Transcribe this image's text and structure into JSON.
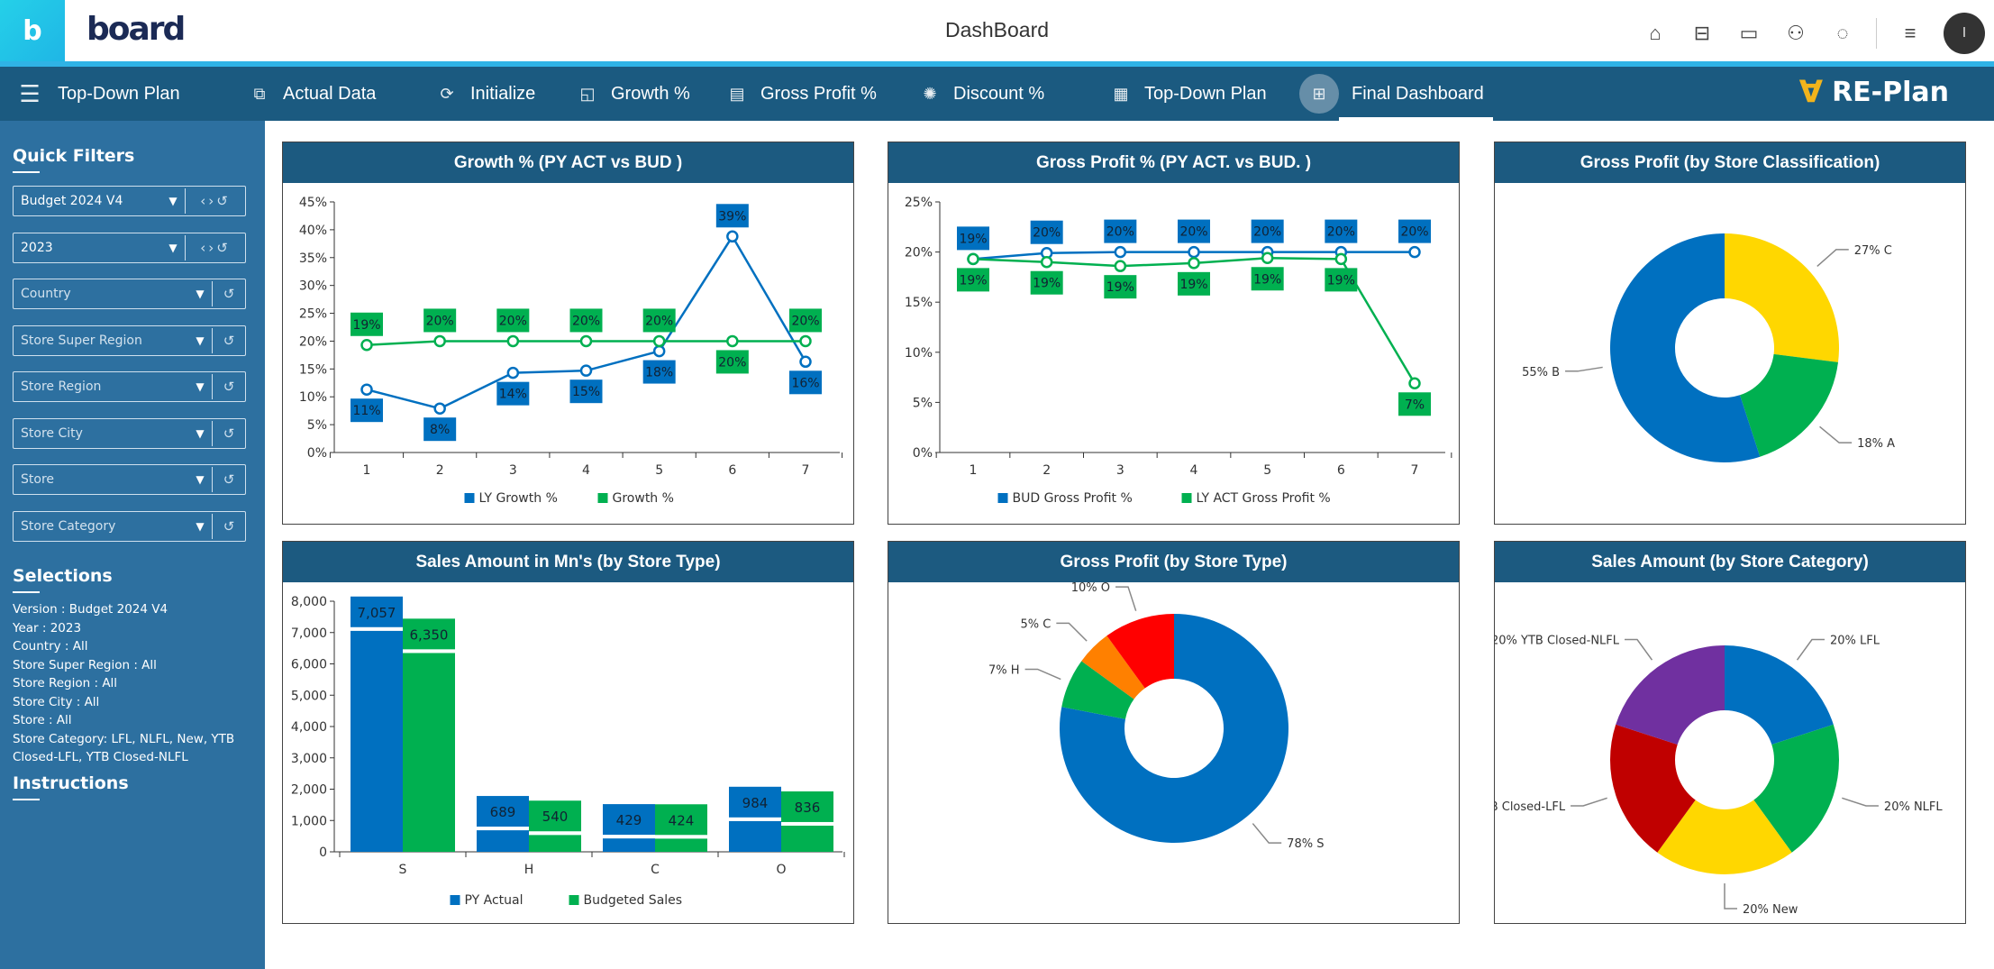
{
  "header": {
    "logo_text": "board",
    "logo_letter": "b",
    "title": "DashBoard",
    "avatar_initial": "I",
    "icons": [
      "home-icon",
      "hierarchy-icon",
      "card-icon",
      "people-icon",
      "chat-icon",
      "menu-icon"
    ]
  },
  "nav": {
    "items": [
      {
        "label": "Top-Down Plan",
        "icon": "hamburger-icon",
        "glyph": "☰"
      },
      {
        "label": "Actual Data",
        "icon": "flow-icon",
        "glyph": "⧉"
      },
      {
        "label": "Initialize",
        "icon": "refresh-icon",
        "glyph": "⟳"
      },
      {
        "label": "Growth %",
        "icon": "chart-icon",
        "glyph": "◱"
      },
      {
        "label": "Gross Profit %",
        "icon": "report-icon",
        "glyph": "▤"
      },
      {
        "label": "Discount %",
        "icon": "badge-icon",
        "glyph": "✺"
      },
      {
        "label": "Top-Down Plan",
        "icon": "document-icon",
        "glyph": "▦"
      },
      {
        "label": "Final Dashboard",
        "icon": "grid-icon",
        "glyph": "⊞",
        "active": true
      }
    ],
    "brand": "RE-Plan"
  },
  "sidebar": {
    "quick_filters_title": "Quick Filters",
    "filters": [
      {
        "value": "Budget 2024 V4",
        "placeholder": false,
        "nav": true
      },
      {
        "value": "2023",
        "placeholder": false,
        "nav": true
      },
      {
        "value": "Country",
        "placeholder": true
      },
      {
        "value": "Store Super Region",
        "placeholder": true
      },
      {
        "value": "Store Region",
        "placeholder": true
      },
      {
        "value": "Store City",
        "placeholder": true
      },
      {
        "value": "Store",
        "placeholder": true
      },
      {
        "value": "Store Category",
        "placeholder": true
      }
    ],
    "selections_title": "Selections",
    "selections": [
      " Version : Budget 2024 V4",
      " Year : 2023",
      "Country : All",
      "Store Super Region : All",
      "Store Region : All",
      "Store City : All",
      "Store : All",
      "Store Category: LFL, NLFL, New, YTB Closed-LFL, YTB Closed-NLFL"
    ],
    "instructions_title": "Instructions"
  },
  "colors": {
    "blue": "#0070c0",
    "green": "#00b050",
    "yellow": "#ffd700",
    "orange": "#ff8000",
    "red": "#ff0000",
    "dark_red": "#c00000",
    "purple": "#7030a0",
    "header": "#1c5a80"
  },
  "chart_data": [
    {
      "id": "growth",
      "type": "line",
      "title": "Growth % (PY ACT vs BUD )",
      "categories": [
        "1",
        "2",
        "3",
        "4",
        "5",
        "6",
        "7"
      ],
      "ylim": [
        0,
        45
      ],
      "yticks": [
        "0%",
        "5%",
        "10%",
        "15%",
        "20%",
        "25%",
        "30%",
        "35%",
        "40%",
        "45%"
      ],
      "ystep": 5,
      "series": [
        {
          "name": "LY Growth %",
          "color": "#0070c0",
          "values": [
            11.3,
            7.9,
            14.3,
            14.7,
            18.2,
            38.8,
            16.3
          ],
          "labels": [
            "11%",
            "8%",
            "14%",
            "15%",
            "18%",
            "39%",
            "16%"
          ]
        },
        {
          "name": "Growth %",
          "color": "#00b050",
          "values": [
            19.3,
            20,
            20,
            20,
            20,
            20,
            20
          ],
          "labels": [
            "19%",
            "20%",
            "20%",
            "20%",
            "20%",
            "20%",
            "20%"
          ]
        }
      ]
    },
    {
      "id": "gp",
      "type": "line",
      "title": "Gross Profit % (PY ACT. vs BUD. )",
      "categories": [
        "1",
        "2",
        "3",
        "4",
        "5",
        "6",
        "7"
      ],
      "ylim": [
        0,
        25
      ],
      "yticks": [
        "0%",
        "5%",
        "10%",
        "15%",
        "20%",
        "25%"
      ],
      "ystep": 5,
      "series": [
        {
          "name": "BUD Gross Profit %",
          "color": "#0070c0",
          "values": [
            19.3,
            19.9,
            20,
            20,
            20,
            20,
            20
          ],
          "labels": [
            "19%",
            "20%",
            "20%",
            "20%",
            "20%",
            "20%",
            "20%"
          ]
        },
        {
          "name": "LY ACT Gross Profit %",
          "color": "#00b050",
          "values": [
            19.3,
            19.0,
            18.6,
            18.9,
            19.4,
            19.3,
            6.9
          ],
          "labels": [
            "19%",
            "19%",
            "19%",
            "19%",
            "19%",
            "19%",
            "7%"
          ]
        }
      ]
    },
    {
      "id": "class",
      "type": "pie",
      "donut": true,
      "title": "Gross Profit (by Store Classification)",
      "slices": [
        {
          "label": "27% C",
          "value": 27,
          "color": "#ffd700"
        },
        {
          "label": "18% A",
          "value": 18,
          "color": "#00b050"
        },
        {
          "label": "55% B",
          "value": 55,
          "color": "#0070c0"
        }
      ]
    },
    {
      "id": "sales",
      "type": "bar",
      "title": "Sales Amount in Mn's (by Store Type)",
      "categories": [
        "S",
        "H",
        "C",
        "O"
      ],
      "ylim": [
        0,
        8000
      ],
      "yticks": [
        "0",
        "1,000",
        "2,000",
        "3,000",
        "4,000",
        "5,000",
        "6,000",
        "7,000",
        "8,000"
      ],
      "ystep": 1000,
      "series": [
        {
          "name": "PY Actual",
          "color": "#0070c0",
          "values": [
            7057,
            689,
            429,
            984
          ],
          "labels": [
            "7,057",
            "689",
            "429",
            "984"
          ]
        },
        {
          "name": "Budgeted Sales",
          "color": "#00b050",
          "values": [
            6350,
            540,
            424,
            836
          ],
          "labels": [
            "6,350",
            "540",
            "424",
            "836"
          ]
        }
      ]
    },
    {
      "id": "storetype",
      "type": "pie",
      "donut": true,
      "title": "Gross Profit (by Store Type)",
      "slices": [
        {
          "label": "78% S",
          "value": 78,
          "color": "#0070c0"
        },
        {
          "label": "7% H",
          "value": 7,
          "color": "#00b050"
        },
        {
          "label": "5% C",
          "value": 5,
          "color": "#ff8000"
        },
        {
          "label": "10% O",
          "value": 10,
          "color": "#ff0000"
        }
      ]
    },
    {
      "id": "category",
      "type": "pie",
      "donut": true,
      "title": "Sales Amount (by Store Category)",
      "slices": [
        {
          "label": "20% LFL",
          "value": 20,
          "color": "#0070c0"
        },
        {
          "label": "20% NLFL",
          "value": 20,
          "color": "#00b050"
        },
        {
          "label": "20% New",
          "value": 20,
          "color": "#ffd700"
        },
        {
          "label": "YTB Closed-LFL",
          "value": 20,
          "color": "#c00000"
        },
        {
          "label": "20% YTB Closed-NLFL",
          "value": 20,
          "color": "#7030a0"
        }
      ]
    }
  ]
}
